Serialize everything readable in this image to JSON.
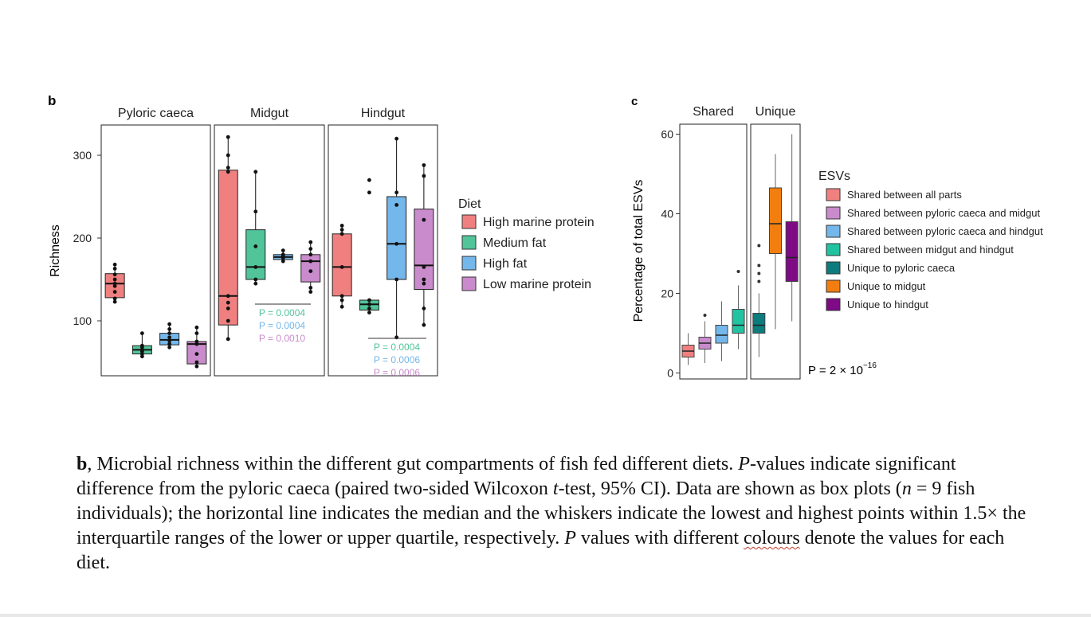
{
  "panel_b": {
    "label": "b",
    "chart_data": {
      "type": "box",
      "facets": [
        "Pyloric caeca",
        "Midgut",
        "Hindgut"
      ],
      "ylabel": "Richness",
      "yticks": [
        100,
        200,
        300
      ],
      "ylim": [
        40,
        335
      ],
      "legend": {
        "title": "Diet",
        "placement": "right",
        "entries": [
          "High marine protein",
          "Medium fat",
          "High fat",
          "Low marine protein"
        ]
      },
      "series": [
        {
          "name": "High marine protein",
          "color": "#F08080",
          "boxes": [
            {
              "facet": "Pyloric caeca",
              "whisker_low": 123,
              "q1": 128,
              "median": 145,
              "q3": 157,
              "whisker_high": 168,
              "points": [
                123,
                127,
                135,
                142,
                145,
                150,
                156,
                163,
                168
              ]
            },
            {
              "facet": "Midgut",
              "whisker_low": 78,
              "q1": 95,
              "median": 130,
              "q3": 282,
              "whisker_high": 322,
              "points": [
                78,
                100,
                115,
                122,
                130,
                280,
                285,
                300,
                322
              ]
            },
            {
              "facet": "Hindgut",
              "whisker_low": 117,
              "q1": 130,
              "median": 165,
              "q3": 205,
              "whisker_high": 215,
              "points": [
                117,
                125,
                130,
                165,
                205,
                210,
                215
              ]
            }
          ]
        },
        {
          "name": "Medium fat",
          "color": "#52C49A",
          "boxes": [
            {
              "facet": "Pyloric caeca",
              "whisker_low": 57,
              "q1": 60,
              "median": 65,
              "q3": 70,
              "whisker_high": 85,
              "points": [
                57,
                60,
                63,
                65,
                68,
                70,
                85
              ]
            },
            {
              "facet": "Midgut",
              "whisker_low": 145,
              "q1": 150,
              "median": 165,
              "q3": 210,
              "whisker_high": 280,
              "points": [
                145,
                150,
                165,
                190,
                232,
                280
              ]
            },
            {
              "facet": "Hindgut",
              "whisker_low": 110,
              "q1": 113,
              "median": 120,
              "q3": 125,
              "whisker_high": 127,
              "points": [
                110,
                115,
                120,
                125,
                255,
                270
              ]
            }
          ]
        },
        {
          "name": "High fat",
          "color": "#74B7EA",
          "boxes": [
            {
              "facet": "Pyloric caeca",
              "whisker_low": 68,
              "q1": 71,
              "median": 77,
              "q3": 85,
              "whisker_high": 96,
              "points": [
                68,
                72,
                76,
                80,
                85,
                90,
                96
              ]
            },
            {
              "facet": "Midgut",
              "whisker_low": 172,
              "q1": 174,
              "median": 177,
              "q3": 180,
              "whisker_high": 185,
              "points": [
                172,
                176,
                178,
                180,
                185
              ]
            },
            {
              "facet": "Hindgut",
              "whisker_low": 80,
              "q1": 150,
              "median": 193,
              "q3": 250,
              "whisker_high": 320,
              "points": [
                80,
                150,
                193,
                240,
                255,
                320
              ]
            }
          ]
        },
        {
          "name": "Low marine protein",
          "color": "#C98BCB",
          "boxes": [
            {
              "facet": "Pyloric caeca",
              "whisker_low": 45,
              "q1": 48,
              "median": 72,
              "q3": 75,
              "whisker_high": 92,
              "points": [
                45,
                50,
                60,
                72,
                75,
                85,
                92
              ]
            },
            {
              "facet": "Midgut",
              "whisker_low": 135,
              "q1": 147,
              "median": 172,
              "q3": 180,
              "whisker_high": 195,
              "points": [
                135,
                140,
                160,
                172,
                180,
                187,
                195
              ]
            },
            {
              "facet": "Hindgut",
              "whisker_low": 95,
              "q1": 138,
              "median": 167,
              "q3": 235,
              "whisker_high": 288,
              "points": [
                95,
                115,
                145,
                150,
                165,
                222,
                275,
                288
              ]
            }
          ]
        }
      ],
      "annotations": [
        {
          "facet": "Midgut",
          "lines": [
            {
              "text": "P = 0.0004",
              "color": "#52C49A"
            },
            {
              "text": "P = 0.0004",
              "color": "#74B7EA"
            },
            {
              "text": "P = 0.0010",
              "color": "#C98BCB"
            }
          ]
        },
        {
          "facet": "Hindgut",
          "lines": [
            {
              "text": "P = 0.0004",
              "color": "#52C49A"
            },
            {
              "text": "P = 0.0006",
              "color": "#74B7EA"
            },
            {
              "text": "P = 0.0006",
              "color": "#C98BCB"
            }
          ]
        }
      ]
    }
  },
  "panel_c": {
    "label": "c",
    "chart_data": {
      "type": "box",
      "facets": [
        "Shared",
        "Unique"
      ],
      "ylabel": "Percentage of total ESVs",
      "yticks": [
        0,
        20,
        40,
        60
      ],
      "ylim": [
        0,
        62
      ],
      "legend": {
        "title": "ESVs",
        "placement": "right",
        "entries": [
          "Shared between all parts",
          "Shared between pyloric caeca and midgut",
          "Shared between pyloric caeca and hindgut",
          "Shared between midgut and hindgut",
          "Unique to pyloric caeca",
          "Unique to midgut",
          "Unique to hindgut"
        ]
      },
      "series": [
        {
          "name": "Shared between all parts",
          "color": "#F08080",
          "facet": "Shared",
          "whisker_low": 2,
          "q1": 4,
          "median": 5.5,
          "q3": 7,
          "whisker_high": 10,
          "outliers": []
        },
        {
          "name": "Shared between pyloric caeca and midgut",
          "color": "#C98BCB",
          "facet": "Shared",
          "whisker_low": 2.5,
          "q1": 6,
          "median": 7.5,
          "q3": 9,
          "whisker_high": 13,
          "outliers": [
            14.5
          ]
        },
        {
          "name": "Shared between pyloric caeca and hindgut",
          "color": "#74B7EA",
          "facet": "Shared",
          "whisker_low": 3,
          "q1": 7.5,
          "median": 9.5,
          "q3": 12,
          "whisker_high": 18,
          "outliers": []
        },
        {
          "name": "Shared between midgut and hindgut",
          "color": "#22C3A0",
          "facet": "Shared",
          "whisker_low": 6,
          "q1": 10,
          "median": 12,
          "q3": 16,
          "whisker_high": 22,
          "outliers": [
            25.5
          ]
        },
        {
          "name": "Unique to pyloric caeca",
          "color": "#0C7C7C",
          "facet": "Unique",
          "whisker_low": 4,
          "q1": 10,
          "median": 12,
          "q3": 15,
          "whisker_high": 20,
          "outliers": [
            23,
            25,
            27,
            32
          ]
        },
        {
          "name": "Unique to midgut",
          "color": "#F27E0F",
          "facet": "Unique",
          "whisker_low": 11,
          "q1": 30,
          "median": 37.5,
          "q3": 46.5,
          "whisker_high": 55,
          "outliers": []
        },
        {
          "name": "Unique to hindgut",
          "color": "#7E0A86",
          "facet": "Unique",
          "whisker_low": 13,
          "q1": 23,
          "median": 29,
          "q3": 38,
          "whisker_high": 60,
          "outliers": []
        }
      ],
      "annotation": {
        "prefix": "P = 2 × 10",
        "exponent": "−16"
      }
    }
  },
  "caption": {
    "b_bold": "b",
    "t1": ", Microbial richness within the different gut compartments of fish fed different diets. ",
    "p1": "P",
    "t2": "-values indicate significant difference from the pyloric caeca (paired two-sided Wilcoxon ",
    "t_italic": "t",
    "t3": "-test, 95% CI). Data are shown as box plots (",
    "n_italic": "n",
    "t4": " = 9 fish individuals); the horizontal line indicates the median and the whiskers indicate the lowest and highest points within 1.5× the interquartile ranges of the lower or upper quartile, respectively. ",
    "p2": "P",
    "t5": " values with different ",
    "colours": "colours",
    "t6": " denote the values for each diet."
  }
}
